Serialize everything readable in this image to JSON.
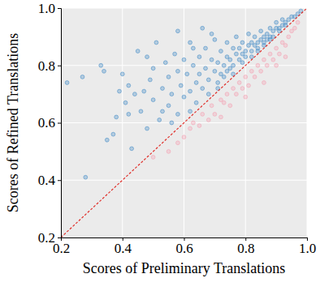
{
  "chart_data": {
    "type": "scatter",
    "x_label": "Scores of Preliminary Translations",
    "y_label": "Scores of Refined Translations",
    "xlim": [
      0.2,
      1
    ],
    "ylim": [
      0.2,
      1
    ],
    "xticks": [
      0.2,
      0.4,
      0.6,
      0.8,
      {
        "value": 1,
        "label": "1.0"
      }
    ],
    "yticks": [
      0.2,
      0.4,
      0.6,
      0.8,
      {
        "value": 1,
        "label": "1.0"
      }
    ],
    "grid": true,
    "series": [
      {
        "color": "#f4a3b5",
        "marker": "circle",
        "x": [
          0.5,
          0.55,
          0.58,
          0.6,
          0.62,
          0.63,
          0.65,
          0.66,
          0.68,
          0.69,
          0.7,
          0.72,
          0.73,
          0.74,
          0.75,
          0.76,
          0.77,
          0.78,
          0.79,
          0.8,
          0.81,
          0.82,
          0.83,
          0.84,
          0.85,
          0.86,
          0.87,
          0.88,
          0.89,
          0.9,
          0.91,
          0.92,
          0.93,
          0.94,
          0.95,
          0.96,
          0.97,
          0.8,
          0.86,
          0.9,
          0.72,
          0.93
        ],
        "values": [
          0.48,
          0.5,
          0.53,
          0.55,
          0.58,
          0.6,
          0.59,
          0.63,
          0.61,
          0.66,
          0.63,
          0.68,
          0.67,
          0.7,
          0.66,
          0.72,
          0.7,
          0.74,
          0.72,
          0.76,
          0.73,
          0.78,
          0.76,
          0.8,
          0.78,
          0.82,
          0.8,
          0.84,
          0.82,
          0.86,
          0.84,
          0.88,
          0.87,
          0.9,
          0.92,
          0.93,
          0.95,
          0.69,
          0.74,
          0.8,
          0.62,
          0.83
        ]
      },
      {
        "color": "#4a90c8",
        "marker": "circle",
        "x": [
          0.28,
          0.22,
          0.27,
          0.33,
          0.34,
          0.35,
          0.37,
          0.38,
          0.4,
          0.41,
          0.42,
          0.43,
          0.44,
          0.45,
          0.46,
          0.47,
          0.48,
          0.49,
          0.5,
          0.5,
          0.51,
          0.52,
          0.53,
          0.54,
          0.55,
          0.55,
          0.56,
          0.57,
          0.58,
          0.58,
          0.59,
          0.6,
          0.6,
          0.61,
          0.62,
          0.62,
          0.63,
          0.64,
          0.64,
          0.65,
          0.65,
          0.66,
          0.67,
          0.67,
          0.68,
          0.68,
          0.69,
          0.7,
          0.7,
          0.71,
          0.71,
          0.72,
          0.72,
          0.73,
          0.73,
          0.74,
          0.74,
          0.75,
          0.75,
          0.76,
          0.76,
          0.77,
          0.77,
          0.78,
          0.78,
          0.79,
          0.79,
          0.8,
          0.8,
          0.81,
          0.81,
          0.82,
          0.82,
          0.83,
          0.83,
          0.84,
          0.84,
          0.85,
          0.85,
          0.86,
          0.86,
          0.87,
          0.87,
          0.88,
          0.88,
          0.89,
          0.89,
          0.9,
          0.9,
          0.91,
          0.92,
          0.92,
          0.93,
          0.94,
          0.95,
          0.96,
          0.97,
          0.98,
          0.58,
          0.66,
          0.48,
          0.42,
          0.39,
          0.53,
          0.63,
          0.69,
          0.74,
          0.79,
          0.84,
          0.88,
          0.91,
          0.76,
          0.71,
          0.62,
          0.56,
          0.82,
          0.86,
          0.93
        ],
        "values": [
          0.41,
          0.74,
          0.76,
          0.8,
          0.78,
          0.54,
          0.56,
          0.62,
          0.77,
          0.67,
          0.73,
          0.51,
          0.7,
          0.85,
          0.64,
          0.71,
          0.58,
          0.75,
          0.79,
          0.68,
          0.88,
          0.61,
          0.72,
          0.81,
          0.66,
          0.76,
          0.7,
          0.84,
          0.63,
          0.78,
          0.73,
          0.82,
          0.69,
          0.77,
          0.88,
          0.71,
          0.8,
          0.74,
          0.67,
          0.83,
          0.77,
          0.72,
          0.86,
          0.79,
          0.75,
          0.7,
          0.82,
          0.78,
          0.89,
          0.74,
          0.81,
          0.85,
          0.77,
          0.8,
          0.76,
          0.83,
          0.88,
          0.79,
          0.82,
          0.86,
          0.8,
          0.84,
          0.9,
          0.82,
          0.86,
          0.84,
          0.88,
          0.85,
          0.83,
          0.87,
          0.91,
          0.85,
          0.88,
          0.87,
          0.9,
          0.88,
          0.86,
          0.89,
          0.92,
          0.88,
          0.9,
          0.91,
          0.89,
          0.9,
          0.93,
          0.92,
          0.9,
          0.93,
          0.95,
          0.93,
          0.94,
          0.96,
          0.95,
          0.96,
          0.97,
          0.97,
          0.98,
          0.99,
          0.92,
          0.93,
          0.83,
          0.63,
          0.71,
          0.64,
          0.86,
          0.91,
          0.78,
          0.81,
          0.85,
          0.89,
          0.92,
          0.77,
          0.72,
          0.64,
          0.6,
          0.83,
          0.87,
          0.94
        ]
      },
      {
        "type": "line",
        "color": "#e0302b",
        "line_style": "dashed",
        "x": [
          0.2,
          1
        ],
        "values": [
          0.2,
          1
        ]
      }
    ]
  }
}
